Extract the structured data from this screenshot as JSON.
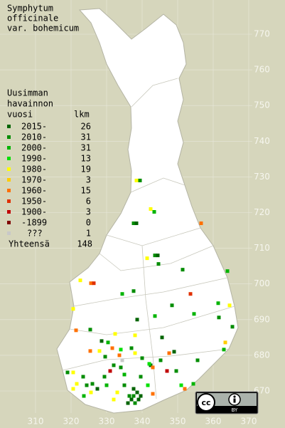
{
  "title": [
    "Symphytum",
    "officinale",
    "var. bohemicum"
  ],
  "legend": {
    "header": [
      "Uusimman",
      "havainnon"
    ],
    "year_header": "vuosi",
    "count_header": "lkm",
    "items": [
      {
        "label": "2015-",
        "count": 26,
        "color": "#006400"
      },
      {
        "label": "2010-",
        "count": 31,
        "color": "#008c00"
      },
      {
        "label": "2000-",
        "count": 31,
        "color": "#00b400"
      },
      {
        "label": "1990-",
        "count": 13,
        "color": "#00e000"
      },
      {
        "label": "1980-",
        "count": 19,
        "color": "#ffff00"
      },
      {
        "label": "1970-",
        "count": 3,
        "color": "#ffcc00"
      },
      {
        "label": "1960-",
        "count": 15,
        "color": "#ff7000"
      },
      {
        "label": "1950-",
        "count": 6,
        "color": "#e03000"
      },
      {
        "label": "1900-",
        "count": 3,
        "color": "#c00000"
      },
      {
        "label": "-1899",
        "count": 0,
        "color": "#800000"
      },
      {
        "label": "???",
        "count": 1,
        "color": "#c8c8c8"
      }
    ],
    "total_label": "Yhteensä",
    "total": 148
  },
  "grid": {
    "north": [
      770,
      760,
      750,
      740,
      730,
      720,
      710,
      700,
      690,
      680,
      670
    ],
    "east": [
      310,
      320,
      330,
      340,
      350,
      360,
      370
    ]
  },
  "badge": "BY",
  "observations": [
    [
      339.4,
      729,
      1
    ],
    [
      338.4,
      729,
      4
    ],
    [
      342.4,
      721,
      4
    ],
    [
      343.4,
      720.2,
      2
    ],
    [
      337.6,
      717,
      1
    ],
    [
      338.4,
      717,
      0
    ],
    [
      356.6,
      717,
      6
    ],
    [
      343.6,
      708,
      1
    ],
    [
      344.4,
      708,
      0
    ],
    [
      341.4,
      707.2,
      4
    ],
    [
      344.6,
      705.6,
      1
    ],
    [
      351.4,
      704,
      1
    ],
    [
      364,
      703.6,
      2
    ],
    [
      322.6,
      701,
      4
    ],
    [
      325.6,
      700.2,
      6
    ],
    [
      326.4,
      700.2,
      7
    ],
    [
      337.6,
      698,
      1
    ],
    [
      334.4,
      697.2,
      2
    ],
    [
      353.6,
      697.2,
      7
    ],
    [
      348.4,
      694,
      1
    ],
    [
      320.6,
      693,
      4
    ],
    [
      361.4,
      694.6,
      2
    ],
    [
      364.6,
      694,
      4
    ],
    [
      354.6,
      691.6,
      2
    ],
    [
      343.6,
      691,
      2
    ],
    [
      361.6,
      690.6,
      1
    ],
    [
      365.4,
      688,
      1
    ],
    [
      338.6,
      690,
      0
    ],
    [
      321.4,
      687,
      6
    ],
    [
      325.4,
      687.2,
      1
    ],
    [
      363.4,
      683.6,
      5
    ],
    [
      363,
      681.6,
      2
    ],
    [
      332.4,
      686,
      4
    ],
    [
      328.6,
      684,
      0
    ],
    [
      345.6,
      685,
      0
    ],
    [
      330.4,
      683.6,
      2
    ],
    [
      331.6,
      682,
      6
    ],
    [
      334,
      681.6,
      3
    ],
    [
      337,
      682,
      1
    ],
    [
      338,
      680.6,
      4
    ],
    [
      333.6,
      680,
      6
    ],
    [
      329.6,
      679.6,
      1
    ],
    [
      328,
      681.2,
      4
    ],
    [
      325.4,
      681.2,
      6
    ],
    [
      349,
      681,
      0
    ],
    [
      347.6,
      680.6,
      6
    ],
    [
      340,
      679.2,
      1
    ],
    [
      342.4,
      677.2,
      0
    ],
    [
      343,
      676.6,
      6
    ],
    [
      342,
      677.6,
      3
    ],
    [
      345.2,
      678.6,
      1
    ],
    [
      347,
      675.6,
      8
    ],
    [
      349.6,
      675.6,
      1
    ],
    [
      355.6,
      678.6,
      1
    ],
    [
      351,
      671.6,
      3
    ],
    [
      352,
      670.6,
      6
    ],
    [
      354.4,
      672,
      2
    ],
    [
      319,
      675.2,
      1
    ],
    [
      320.6,
      675.2,
      4
    ],
    [
      323.4,
      674,
      1
    ],
    [
      321.6,
      672,
      4
    ],
    [
      320.6,
      670.6,
      4
    ],
    [
      324.4,
      671.6,
      1
    ],
    [
      326,
      672,
      1
    ],
    [
      325.6,
      669.6,
      4
    ],
    [
      327.4,
      670.6,
      0
    ],
    [
      330,
      671.6,
      2
    ],
    [
      333,
      669.6,
      4
    ],
    [
      335,
      671.6,
      1
    ],
    [
      337.6,
      670.6,
      0
    ],
    [
      336.4,
      668.6,
      1
    ],
    [
      337,
      667.6,
      0
    ],
    [
      338,
      666.6,
      1
    ],
    [
      336,
      666.6,
      0
    ],
    [
      332,
      667.6,
      4
    ],
    [
      335,
      674.6,
      2
    ],
    [
      339.6,
      674,
      1
    ],
    [
      341.6,
      671.6,
      3
    ],
    [
      343,
      669.2,
      6
    ],
    [
      339.6,
      668.6,
      0
    ],
    [
      334,
      676.6,
      1
    ],
    [
      331,
      675.6,
      8
    ],
    [
      332,
      677.2,
      1
    ],
    [
      334.4,
      678.6,
      10
    ],
    [
      338,
      685.6,
      4
    ],
    [
      329.4,
      674,
      1
    ],
    [
      323.6,
      668.6,
      2
    ],
    [
      338.6,
      669.6,
      0
    ],
    [
      337.6,
      668.6,
      1
    ],
    [
      339,
      667.6,
      0
    ]
  ]
}
